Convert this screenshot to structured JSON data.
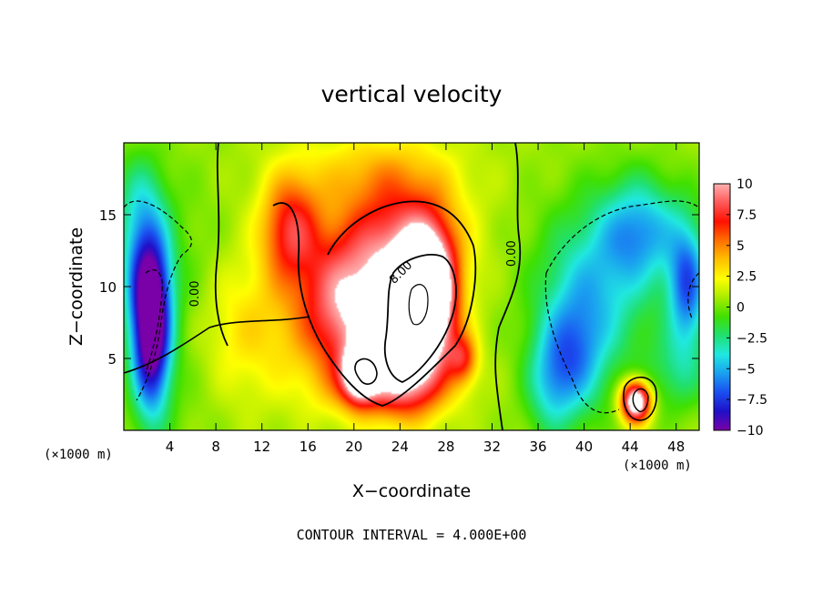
{
  "chart_data": {
    "type": "heatmap",
    "title": "vertical velocity",
    "xlabel": "X−coordinate",
    "ylabel": "Z−coordinate",
    "x_unit_left": "(×1000 m)",
    "x_unit_right": "(×1000 m)",
    "footer": "CONTOUR INTERVAL = 4.000E+00",
    "xlim": [
      0,
      50
    ],
    "ylim": [
      0,
      20
    ],
    "x_ticks": [
      4,
      8,
      12,
      16,
      20,
      24,
      28,
      32,
      36,
      40,
      44,
      48
    ],
    "x_tick_labels": [
      "4",
      "8",
      "12",
      "16",
      "20",
      "24",
      "28",
      "32",
      "36",
      "40",
      "44",
      "48"
    ],
    "y_ticks": [
      5,
      10,
      15
    ],
    "y_tick_labels": [
      "5",
      "10",
      "15"
    ],
    "colorbar": {
      "range": [
        -10,
        10
      ],
      "ticks": [
        10,
        7.5,
        5,
        2.5,
        0,
        -2.5,
        -5,
        -7.5,
        -10
      ],
      "tick_labels": [
        "10",
        "7.5",
        "5",
        "2.5",
        "0",
        "−2.5",
        "−5",
        "−7.5",
        "−10"
      ],
      "colors": [
        "#7a00a8",
        "#1f10c8",
        "#1a4ef0",
        "#1aa0f0",
        "#20e8e0",
        "#20e070",
        "#40e000",
        "#a8ec00",
        "#ffff00",
        "#ffc000",
        "#ff7000",
        "#ff1000",
        "#ff5858",
        "#ffb0b0"
      ]
    },
    "contour_labels": [
      {
        "text": "0.00",
        "x": 6.5,
        "y": 9.5,
        "angle": -90
      },
      {
        "text": "8.00",
        "x": 24.3,
        "y": 10.8,
        "angle": -45
      },
      {
        "text": "0.00",
        "x": 34.0,
        "y": 12.3,
        "angle": -90
      }
    ],
    "features": [
      {
        "x": 2.4,
        "z": 6.5,
        "w": -12,
        "sx": 1.2,
        "sz": 3.8
      },
      {
        "x": 2.0,
        "z": 11.0,
        "w": -6,
        "sx": 1.5,
        "sz": 3.0
      },
      {
        "x": 1.4,
        "z": 16.0,
        "w": -3,
        "sx": 1.6,
        "sz": 2.5
      },
      {
        "x": 6.0,
        "z": 8.0,
        "w": -1.2,
        "sx": 2.0,
        "sz": 6.0
      },
      {
        "x": 11.0,
        "z": 7.0,
        "w": 2.5,
        "sx": 4.0,
        "sz": 3.5
      },
      {
        "x": 14.5,
        "z": 14.0,
        "w": 6.5,
        "sx": 1.8,
        "sz": 2.6
      },
      {
        "x": 19.0,
        "z": 8.5,
        "w": 8,
        "sx": 2.6,
        "sz": 3.5
      },
      {
        "x": 24.5,
        "z": 6.5,
        "w": 11,
        "sx": 2.4,
        "sz": 3.2
      },
      {
        "x": 26.5,
        "z": 9.5,
        "w": 12,
        "sx": 1.6,
        "sz": 3.0
      },
      {
        "x": 20.5,
        "z": 4.0,
        "w": 10,
        "sx": 1.0,
        "sz": 1.3
      },
      {
        "x": 24.0,
        "z": 13.0,
        "w": 7,
        "sx": 3.5,
        "sz": 3.0
      },
      {
        "x": 29.5,
        "z": 5.0,
        "w": 5,
        "sx": 0.9,
        "sz": 1.2
      },
      {
        "x": 23.0,
        "z": 3.0,
        "w": 4,
        "sx": 3.5,
        "sz": 1.5
      },
      {
        "x": 22.0,
        "z": 18.0,
        "w": 2.5,
        "sx": 5.0,
        "sz": 2.0
      },
      {
        "x": 39.0,
        "z": 5.0,
        "w": -5,
        "sx": 2.0,
        "sz": 3.0
      },
      {
        "x": 41.0,
        "z": 10.0,
        "w": -4.5,
        "sx": 3.5,
        "sz": 4.0
      },
      {
        "x": 45.0,
        "z": 14.0,
        "w": -5,
        "sx": 2.5,
        "sz": 2.5
      },
      {
        "x": 49.0,
        "z": 10.0,
        "w": -7,
        "sx": 1.2,
        "sz": 3.0
      },
      {
        "x": 37.0,
        "z": 3.0,
        "w": -3,
        "sx": 1.5,
        "sz": 2.5
      },
      {
        "x": 48.0,
        "z": 4.0,
        "w": -2.5,
        "sx": 2.0,
        "sz": 2.0
      },
      {
        "x": 44.5,
        "z": 2.0,
        "w": 13,
        "sx": 0.9,
        "sz": 1.0
      }
    ]
  }
}
